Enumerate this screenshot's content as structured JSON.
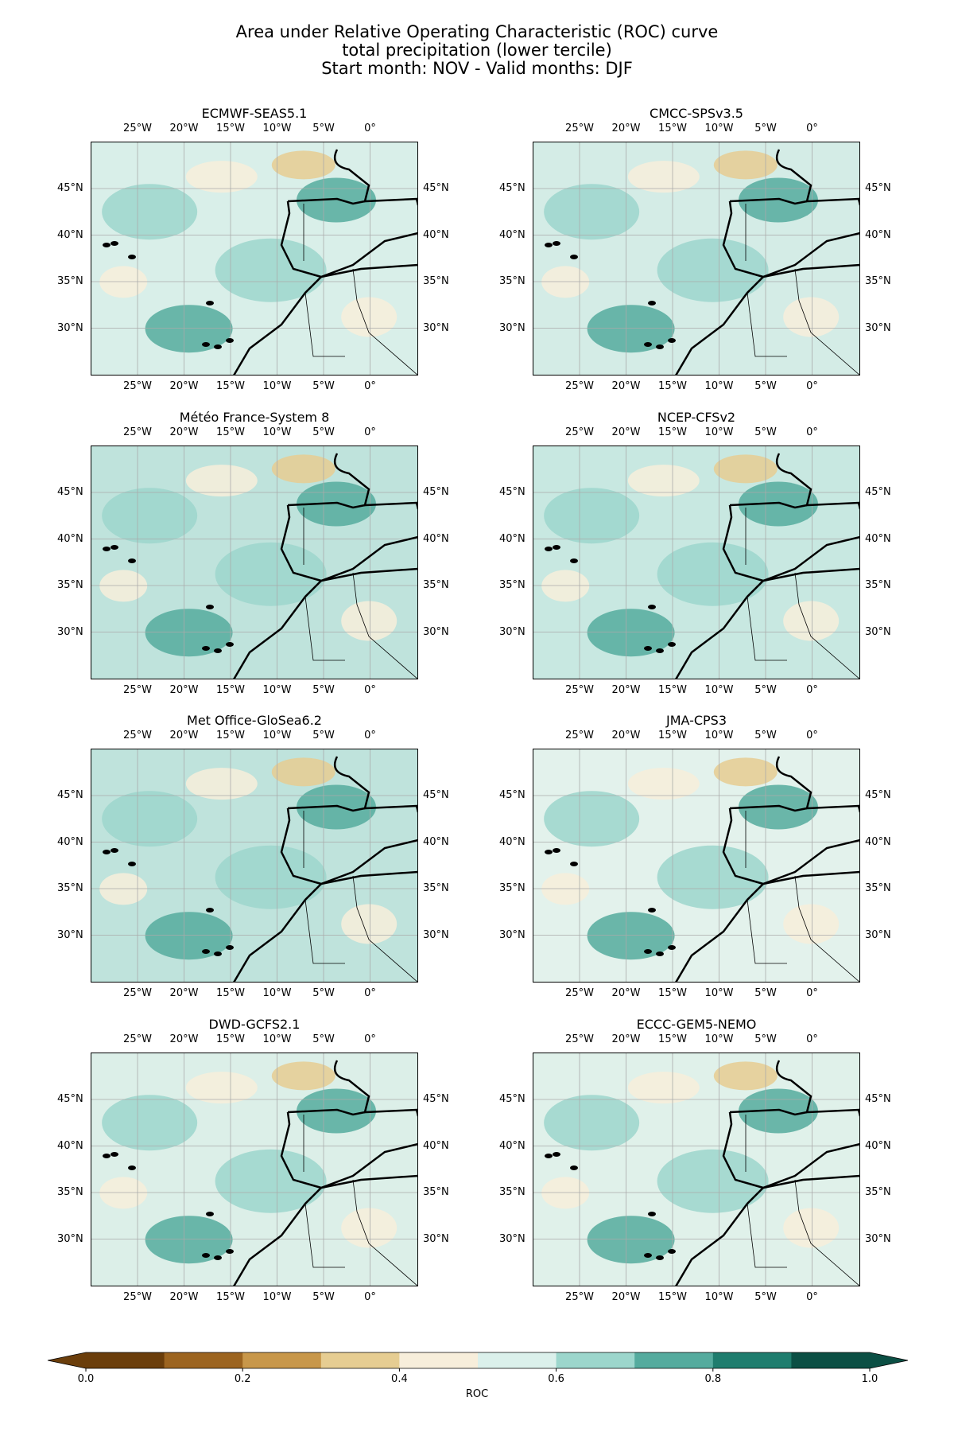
{
  "figure": {
    "title_lines": [
      "Area under Relative Operating Characteristic (ROC) curve",
      "total precipitation (lower tercile)",
      "Start month: NOV - Valid months: DJF"
    ]
  },
  "axes": {
    "lon_ticks": [
      "25°W",
      "20°W",
      "15°W",
      "10°W",
      "5°W",
      "0°"
    ],
    "lat_ticks": [
      "45°N",
      "40°N",
      "35°N",
      "30°N"
    ]
  },
  "panels": [
    {
      "name": "ECMWF-SEAS5.1",
      "tint": "#d9efe9"
    },
    {
      "name": "CMCC-SPSv3.5",
      "tint": "#d4ece6"
    },
    {
      "name": "Météo France-System 8",
      "tint": "#bfe3dc"
    },
    {
      "name": "NCEP-CFSv2",
      "tint": "#c8e8e1"
    },
    {
      "name": "Met Office-GloSea6.2",
      "tint": "#bfe3dc"
    },
    {
      "name": "JMA-CPS3",
      "tint": "#e3f2ec"
    },
    {
      "name": "DWD-GCFS2.1",
      "tint": "#dcefe8"
    },
    {
      "name": "ECCC-GEM5-NEMO",
      "tint": "#e0f1ea"
    }
  ],
  "colorbar": {
    "label": "ROC",
    "tick_labels": [
      "0.0",
      "0.2",
      "0.4",
      "0.6",
      "0.8",
      "1.0"
    ],
    "bin_edges": [
      0.0,
      0.1,
      0.2,
      0.3,
      0.4,
      0.5,
      0.6,
      0.7,
      0.8,
      0.9,
      1.0
    ],
    "colors": [
      "#6b3e0b",
      "#9c6420",
      "#c8974a",
      "#e6cd92",
      "#f7eedb",
      "#dbf0eb",
      "#9cd6cc",
      "#55ab9e",
      "#1f7d6e",
      "#0b4f44"
    ],
    "extend": "both",
    "low_color": "#6b3e0b",
    "high_color": "#0b4f44"
  }
}
